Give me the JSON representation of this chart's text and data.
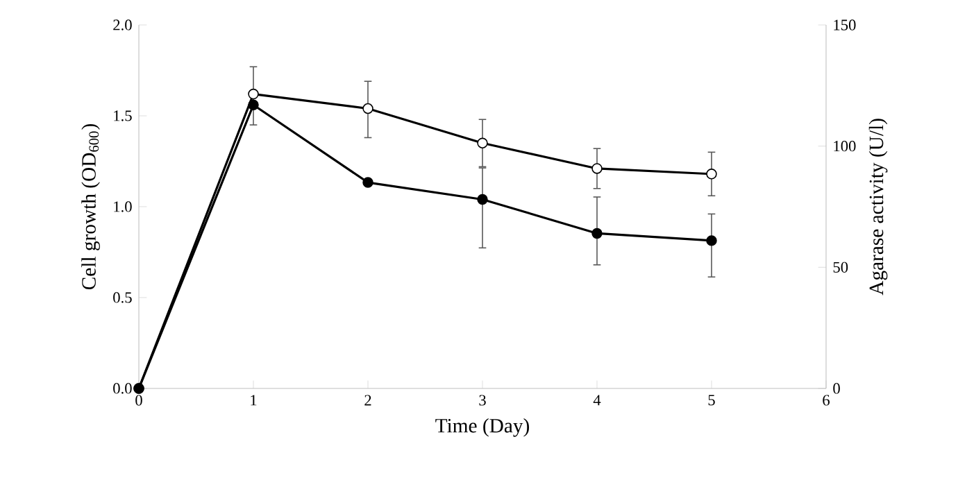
{
  "chart_data": {
    "type": "line",
    "xlabel": "Time (Day)",
    "ylabel": "Cell growth (OD$_{600}$)",
    "y2label": "Agarase activity (U/l)",
    "x": [
      0,
      1,
      2,
      3,
      4,
      5
    ],
    "series": [
      {
        "color": "#000000",
        "values": [
          0,
          1.62,
          1.54,
          1.35,
          1.21,
          1.18
        ],
        "errors": [
          null,
          [
            1.45,
            1.77
          ],
          [
            1.38,
            1.69
          ],
          [
            1.22,
            1.48
          ],
          [
            1.1,
            1.32
          ],
          [
            1.06,
            1.3
          ]
        ]
      },
      {
        "color": "#000000",
        "axis": "y2",
        "values": [
          0,
          117,
          85,
          78,
          64,
          61
        ],
        "errors": [
          null,
          null,
          null,
          [
            58,
            91
          ],
          [
            51,
            79
          ],
          [
            46,
            72
          ]
        ]
      }
    ],
    "xlim": [
      0,
      6
    ],
    "xticks": [
      0,
      1,
      2,
      3,
      4,
      5,
      6
    ],
    "ylim": [
      0,
      2
    ],
    "yticks": [
      {
        "value": 0,
        "label": "0.0"
      },
      {
        "value": 0.5,
        "label": "0.5"
      },
      {
        "value": 1,
        "label": "1.0"
      },
      {
        "value": 1.5,
        "label": "1.5"
      },
      {
        "value": 2,
        "label": "2.0"
      }
    ],
    "y2lim": [
      0,
      150
    ],
    "y2ticks": [
      0,
      50,
      100,
      150
    ],
    "marker": "circle",
    "line_style": "solid"
  }
}
